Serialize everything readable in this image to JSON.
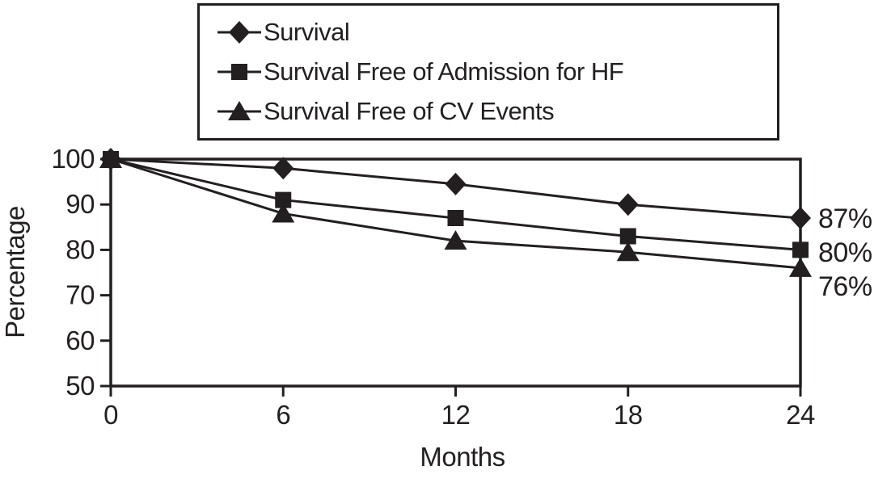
{
  "chart_data": {
    "type": "line",
    "title": "",
    "xlabel": "Months",
    "ylabel": "Percentage",
    "x": [
      0,
      6,
      12,
      18,
      24
    ],
    "xlim": [
      0,
      24
    ],
    "ylim": [
      50,
      100
    ],
    "x_ticks": [
      0,
      6,
      12,
      18,
      24
    ],
    "y_ticks": [
      100,
      90,
      80,
      70,
      60,
      50
    ],
    "grid": false,
    "legend_position": "top-center-boxed",
    "line_color": "#231f20",
    "series": [
      {
        "name": "Survival",
        "marker": "diamond",
        "values": [
          100,
          98,
          94.5,
          90,
          87
        ],
        "end_label": "87%"
      },
      {
        "name": "Survival Free of Admission for HF",
        "marker": "square",
        "values": [
          100,
          91,
          87,
          83,
          80
        ],
        "end_label": "80%"
      },
      {
        "name": "Survival Free of CV Events",
        "marker": "triangle",
        "values": [
          100,
          88,
          82,
          79.5,
          76
        ],
        "end_label": "76%"
      }
    ]
  }
}
